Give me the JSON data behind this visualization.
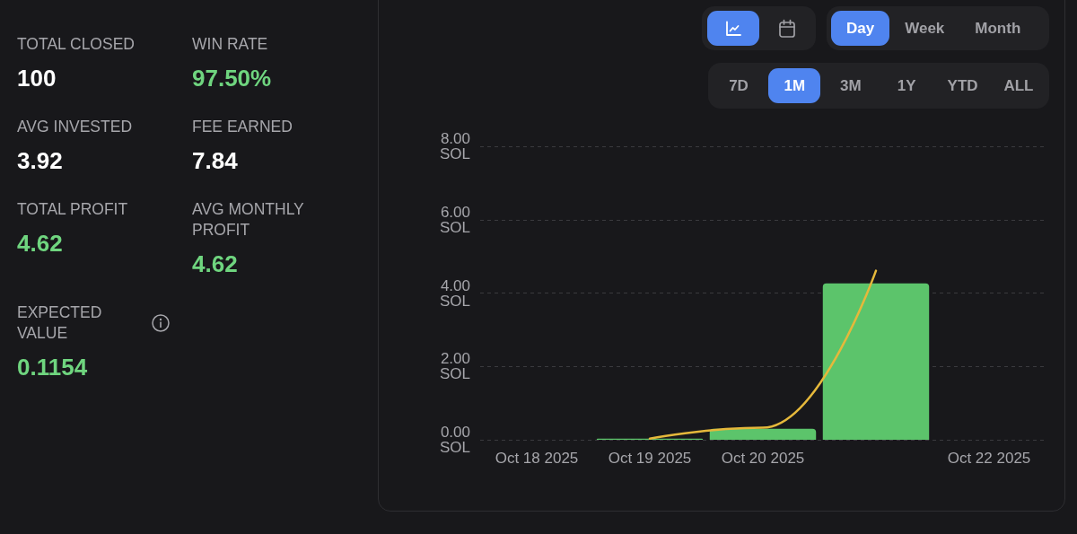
{
  "chart_data": [
    {
      "type": "other",
      "categories": [
        "TOTAL CLOSED",
        "WIN RATE",
        "AVG INVESTED",
        "FEE EARNED",
        "TOTAL PROFIT",
        "AVG MONTHLY PROFIT",
        "EXPECTED VALUE"
      ],
      "value_labels": [
        "100",
        "97.50%",
        "3.92",
        "7.84",
        "4.62",
        "4.62",
        "0.1154"
      ],
      "colors": [
        "#ffffff",
        "#6fd57f",
        "#ffffff",
        "#ffffff",
        "#6fd57f",
        "#6fd57f",
        "#6fd57f"
      ]
    },
    {
      "type": "other",
      "categories": [
        null,
        null,
        "Day",
        "Week",
        "Month",
        "7D",
        "1M",
        "3M",
        "1Y",
        "YTD",
        "ALL"
      ],
      "colors": [
        "#4f84ef",
        null,
        "#4f84ef",
        null,
        null,
        null,
        "#4f84ef",
        null,
        null,
        null,
        null
      ]
    },
    {
      "type": "bar",
      "categories": [
        "Oct 18 2025",
        "Oct 19 2025",
        "Oct 20 2025",
        null,
        "Oct 22 2025"
      ],
      "series": [
        {
          "type": "bar",
          "color": "#5cc46b",
          "values": [
            null,
            0.03,
            0.3,
            4.26,
            null
          ]
        },
        {
          "type": "line",
          "color": "#e5b83b",
          "values": [
            null,
            0.03,
            0.33,
            4.61,
            null
          ]
        }
      ],
      "ylim": [
        0,
        8
      ],
      "yticks": [
        {
          "value": 0,
          "label": "0.00 SOL"
        },
        {
          "value": 2,
          "label": "2.00 SOL"
        },
        {
          "value": 4,
          "label": "4.00 SOL"
        },
        {
          "value": 6,
          "label": "6.00 SOL"
        },
        {
          "value": 8,
          "label": "8.00 SOL"
        }
      ],
      "grid": "y",
      "marker": "none",
      "line_style": "solid"
    }
  ]
}
